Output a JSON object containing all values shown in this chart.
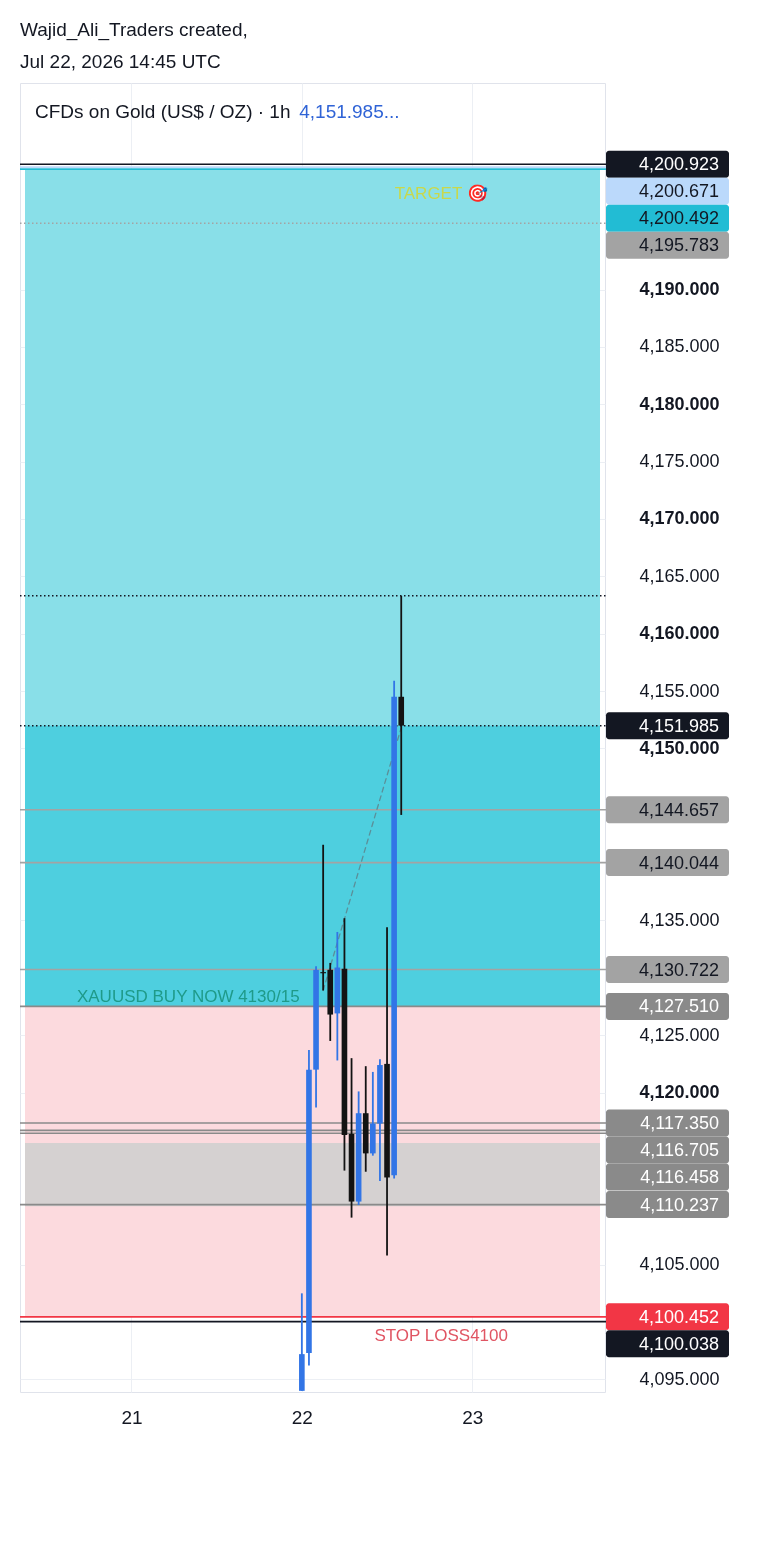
{
  "chart_data": {
    "type": "candlestick",
    "title": "CFDs on Gold (US$ / OZ) · 1h",
    "subtitle": "4,151.985...",
    "annotations": [
      "Wajid_Ali_Traders created,",
      "Jul 22, 2026 14:45 UTC",
      {
        "text": "XAUUSD BUY NOW 4130/15",
        "x": "2026-07-21T08:00",
        "y": 4127.3
      }
    ],
    "x": [
      "2026-07-22T00:00",
      "2026-07-22T01:00",
      "2026-07-22T02:00",
      "2026-07-22T03:00",
      "2026-07-22T04:00",
      "2026-07-22T05:00",
      "2026-07-22T06:00",
      "2026-07-22T07:00",
      "2026-07-22T08:00",
      "2026-07-22T09:00",
      "2026-07-22T10:00",
      "2026-07-22T11:00",
      "2026-07-22T12:00",
      "2026-07-22T13:00",
      "2026-07-22T14:00"
    ],
    "ohlc": [
      [
        4094.0,
        4102.5,
        4094.0,
        4097.2
      ],
      [
        4097.3,
        4123.7,
        4096.2,
        4122.0
      ],
      [
        4122.0,
        4131.0,
        4118.7,
        4130.7
      ],
      [
        4130.5,
        4141.6,
        4128.9,
        4130.4
      ],
      [
        4130.7,
        4131.3,
        4124.5,
        4126.8
      ],
      [
        4126.9,
        4134.0,
        4122.8,
        4130.9
      ],
      [
        4130.8,
        4135.2,
        4113.2,
        4116.3
      ],
      [
        4116.4,
        4123.0,
        4109.1,
        4110.5
      ],
      [
        4110.5,
        4120.1,
        4110.2,
        4118.2
      ],
      [
        4118.2,
        4122.3,
        4113.1,
        4114.7
      ],
      [
        4114.7,
        4121.8,
        4114.5,
        4117.3
      ],
      [
        4117.3,
        4122.9,
        4112.3,
        4122.4
      ],
      [
        4122.5,
        4134.4,
        4105.8,
        4112.6
      ],
      [
        4112.8,
        4155.9,
        4112.5,
        4154.5
      ],
      [
        4154.5,
        4163.3,
        4144.2,
        4151.985
      ]
    ],
    "colors": [
      "#3275e6",
      "#3275e6",
      "#3275e6",
      "#131313",
      "#131313",
      "#3275e6",
      "#131313",
      "#131313",
      "#3275e6",
      "#131313",
      "#3275e6",
      "#3275e6",
      "#131313",
      "#3275e6",
      "#131313"
    ],
    "series": [
      {
        "type": "line",
        "x": [
          "2026-07-22T03:00",
          "2026-07-22T14:00"
        ],
        "values": [
          4128.9,
          4151.8
        ],
        "color": "#5b8f99",
        "line_style": "dashed"
      }
    ],
    "xlim": [
      "2026-07-20T09:00",
      "2026-07-23T18:00"
    ],
    "xticks": [
      {
        "value": "2026-07-21",
        "label": "21"
      },
      {
        "value": "2026-07-22",
        "label": "22"
      },
      {
        "value": "2026-07-23",
        "label": "23"
      }
    ],
    "ylim": [
      4093.9,
      4208.0
    ],
    "yticks": [
      {
        "value": 4095,
        "label": "4,095.000"
      },
      {
        "value": 4105,
        "label": "4,105.000"
      },
      {
        "value": 4120,
        "label": "4,120.000"
      },
      {
        "value": 4125,
        "label": "4,125.000"
      },
      {
        "value": 4135,
        "label": "4,135.000"
      },
      {
        "value": 4150,
        "label": "4,150.000"
      },
      {
        "value": 4155,
        "label": "4,155.000"
      },
      {
        "value": 4160,
        "label": "4,160.000"
      },
      {
        "value": 4165,
        "label": "4,165.000"
      },
      {
        "value": 4170,
        "label": "4,170.000"
      },
      {
        "value": 4175,
        "label": "4,175.000"
      },
      {
        "value": 4180,
        "label": "4,180.000"
      },
      {
        "value": 4185,
        "label": "4,185.000"
      },
      {
        "value": 4190,
        "label": "4,190.000"
      }
    ],
    "grid": true,
    "bands": [
      {
        "axis": "y",
        "from": 4127.51,
        "to": 4200.492,
        "color": "#89dfe8",
        "label": "TARGET 🎯"
      },
      {
        "axis": "y",
        "from": 4127.51,
        "to": 4151.985,
        "color": "#4ecfdf"
      },
      {
        "axis": "y",
        "from": 4100.452,
        "to": 4127.51,
        "color": "#fcdade",
        "label": "STOP LOSS4100"
      },
      {
        "axis": "y",
        "from": 4110.1,
        "to": 4115.6,
        "color": "#d5d1d1"
      }
    ],
    "ref_lines": [
      {
        "axis": "y",
        "value": 4200.923,
        "label": "4,200.923",
        "color": "#131722",
        "line_style": "solid"
      },
      {
        "axis": "y",
        "value": 4200.671,
        "label": "4,200.671",
        "color": "#bbd9fb",
        "line_style": "solid"
      },
      {
        "axis": "y",
        "value": 4200.492,
        "label": "4,200.492",
        "color": "#22bcd4",
        "line_style": "solid"
      },
      {
        "axis": "y",
        "value": 4195.783,
        "label": "4,195.783",
        "color": "#a3a3a3",
        "line_style": "dotted"
      },
      {
        "axis": "y",
        "value": 4163.3,
        "color": "#131722",
        "line_style": "dotted"
      },
      {
        "axis": "y",
        "value": 4151.985,
        "label": "4,151.985",
        "color": "#131722",
        "line_style": "dotted"
      },
      {
        "axis": "y",
        "value": 4144.657,
        "label": "4,144.657",
        "color": "#a3a3a3",
        "line_style": "solid"
      },
      {
        "axis": "y",
        "value": 4140.044,
        "label": "4,140.044",
        "color": "#a3a3a3",
        "line_style": "solid"
      },
      {
        "axis": "y",
        "value": 4130.722,
        "label": "4,130.722",
        "color": "#a3a3a3",
        "line_style": "solid"
      },
      {
        "axis": "y",
        "value": 4127.51,
        "label": "4,127.510",
        "color": "#8a8a8a",
        "line_style": "solid"
      },
      {
        "axis": "y",
        "value": 4117.35,
        "label": "4,117.350",
        "color": "#8a8a8a",
        "line_style": "solid"
      },
      {
        "axis": "y",
        "value": 4116.705,
        "label": "4,116.705",
        "color": "#8a8a8a",
        "line_style": "solid"
      },
      {
        "axis": "y",
        "value": 4116.458,
        "label": "4,116.458",
        "color": "#8a8a8a",
        "line_style": "solid"
      },
      {
        "axis": "y",
        "value": 4110.237,
        "label": "4,110.237",
        "color": "#8a8a8a",
        "line_style": "solid"
      },
      {
        "axis": "y",
        "value": 4100.452,
        "label": "4,100.452",
        "color": "#f23645",
        "line_style": "solid"
      },
      {
        "axis": "y",
        "value": 4100.038,
        "label": "4,100.038",
        "color": "#131722",
        "line_style": "solid"
      }
    ]
  }
}
